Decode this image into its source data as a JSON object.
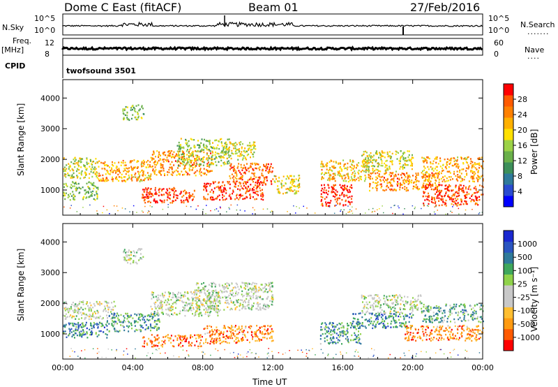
{
  "header": {
    "site": "Dome C East (fitACF)",
    "beam": "Beam 01",
    "date": "27/Feb/2016"
  },
  "panels": {
    "nsky": {
      "label": "N.Sky",
      "tick_top": "10^5",
      "tick_bottom": "10^0"
    },
    "nsearch": {
      "label": "N.Search",
      "tick_top": "10^5",
      "tick_bottom": "10^0",
      "dots": "......."
    },
    "freq": {
      "label_line1": "Freq.",
      "label_line2": "[MHz]",
      "tick_top": "12",
      "tick_bottom": "8"
    },
    "nave": {
      "label": "Nave",
      "tick_top": "60",
      "tick_bottom": "0",
      "dots": "...."
    },
    "cpid": {
      "label": "CPID",
      "program": "twofsound 3501"
    }
  },
  "colors": {
    "power": [
      "#0000ff",
      "#2a4bd0",
      "#2f7a9a",
      "#3d8f5a",
      "#6ab04a",
      "#9cd247",
      "#ffe000",
      "#ffb000",
      "#ff8000",
      "#ff5a00",
      "#ff0000"
    ],
    "velocity": [
      "#ff0000",
      "#ff5a00",
      "#ff9a10",
      "#ffbe30",
      "#c8c8c8",
      "#c8c8c8",
      "#8fd24a",
      "#3fa75c",
      "#2f7a9a",
      "#2a55c0",
      "#1a28d0"
    ]
  },
  "chart_data": [
    {
      "type": "heatmap",
      "name_panel": "power",
      "xlabel": "",
      "ylabel": "Slant Range [km]",
      "xlim": [
        0,
        24
      ],
      "ylim": [
        180,
        4600
      ],
      "x_ticks": [
        0,
        4,
        8,
        12,
        16,
        20,
        24
      ],
      "y_ticks": [
        1000,
        2000,
        3000,
        4000
      ],
      "colorbar": {
        "label": "Power [dB]",
        "range": [
          0,
          32
        ],
        "ticks": [
          "4",
          "8",
          "12",
          "16",
          "20",
          "24",
          "28"
        ]
      },
      "echo_regions": [
        {
          "t0": 0.0,
          "t1": 2.0,
          "r0": 1400,
          "r1": 2100,
          "level": 0.55
        },
        {
          "t0": 0.0,
          "t1": 2.0,
          "r0": 700,
          "r1": 1300,
          "level": 0.45
        },
        {
          "t0": 2.0,
          "t1": 5.0,
          "r0": 1300,
          "r1": 2000,
          "level": 0.7
        },
        {
          "t0": 4.5,
          "t1": 7.5,
          "r0": 600,
          "r1": 1100,
          "level": 0.92
        },
        {
          "t0": 5.0,
          "t1": 8.5,
          "r0": 1500,
          "r1": 2300,
          "level": 0.75
        },
        {
          "t0": 6.5,
          "t1": 9.5,
          "r0": 1800,
          "r1": 2700,
          "level": 0.5
        },
        {
          "t0": 8.0,
          "t1": 11.5,
          "r0": 700,
          "r1": 1300,
          "level": 0.9
        },
        {
          "t0": 9.5,
          "t1": 12.0,
          "r0": 1200,
          "r1": 1900,
          "level": 0.85
        },
        {
          "t0": 9.0,
          "t1": 11.0,
          "r0": 2000,
          "r1": 2600,
          "level": 0.55
        },
        {
          "t0": 12.0,
          "t1": 13.5,
          "r0": 900,
          "r1": 1500,
          "level": 0.6
        },
        {
          "t0": 3.4,
          "t1": 4.6,
          "r0": 3300,
          "r1": 3800,
          "level": 0.45
        },
        {
          "t0": 14.7,
          "t1": 16.5,
          "r0": 500,
          "r1": 1200,
          "level": 0.95
        },
        {
          "t0": 14.7,
          "t1": 17.5,
          "r0": 1300,
          "r1": 2000,
          "level": 0.65
        },
        {
          "t0": 17.0,
          "t1": 20.0,
          "r0": 1600,
          "r1": 2300,
          "level": 0.55
        },
        {
          "t0": 17.5,
          "t1": 21.5,
          "r0": 1000,
          "r1": 1600,
          "level": 0.75
        },
        {
          "t0": 20.5,
          "t1": 24.0,
          "r0": 500,
          "r1": 1200,
          "level": 0.88
        },
        {
          "t0": 20.5,
          "t1": 24.0,
          "r0": 1300,
          "r1": 2100,
          "level": 0.7
        }
      ]
    },
    {
      "type": "heatmap",
      "name_panel": "velocity",
      "xlabel": "Time UT",
      "ylabel": "Slant Range [km]",
      "xlim": [
        0,
        24
      ],
      "ylim": [
        180,
        4600
      ],
      "x_ticks": [
        0,
        4,
        8,
        12,
        16,
        20,
        24
      ],
      "x_tick_labels": [
        "00:00",
        "04:00",
        "08:00",
        "12:00",
        "16:00",
        "20:00",
        "00:00"
      ],
      "y_ticks": [
        1000,
        2000,
        3000,
        4000
      ],
      "colorbar": {
        "label": "Velocity [m s⁻¹]",
        "range": [
          -1200,
          1200
        ],
        "ticks": [
          "-1000",
          "-500",
          "-100",
          "-25",
          "25",
          "100",
          "500",
          "1000"
        ]
      },
      "echo_regions": [
        {
          "t0": 0.0,
          "t1": 3.0,
          "r0": 1500,
          "r1": 2100,
          "level": 0.5
        },
        {
          "t0": 0.0,
          "t1": 2.5,
          "r0": 900,
          "r1": 1400,
          "level": 0.75
        },
        {
          "t0": 2.5,
          "t1": 5.5,
          "r0": 1100,
          "r1": 1700,
          "level": 0.7
        },
        {
          "t0": 4.5,
          "t1": 8.0,
          "r0": 600,
          "r1": 1000,
          "level": 0.2
        },
        {
          "t0": 5.0,
          "t1": 9.0,
          "r0": 1600,
          "r1": 2400,
          "level": 0.5
        },
        {
          "t0": 7.5,
          "t1": 12.0,
          "r0": 1800,
          "r1": 2700,
          "level": 0.5
        },
        {
          "t0": 8.0,
          "t1": 12.0,
          "r0": 700,
          "r1": 1300,
          "level": 0.2
        },
        {
          "t0": 3.4,
          "t1": 4.6,
          "r0": 3300,
          "r1": 3800,
          "level": 0.5
        },
        {
          "t0": 14.7,
          "t1": 17.0,
          "r0": 700,
          "r1": 1400,
          "level": 0.7
        },
        {
          "t0": 16.5,
          "t1": 20.0,
          "r0": 1200,
          "r1": 1700,
          "level": 0.75
        },
        {
          "t0": 17.0,
          "t1": 20.5,
          "r0": 1700,
          "r1": 2300,
          "level": 0.5
        },
        {
          "t0": 19.5,
          "t1": 24.0,
          "r0": 800,
          "r1": 1300,
          "level": 0.2
        },
        {
          "t0": 20.5,
          "t1": 24.0,
          "r0": 1400,
          "r1": 2000,
          "level": 0.65
        }
      ]
    }
  ]
}
